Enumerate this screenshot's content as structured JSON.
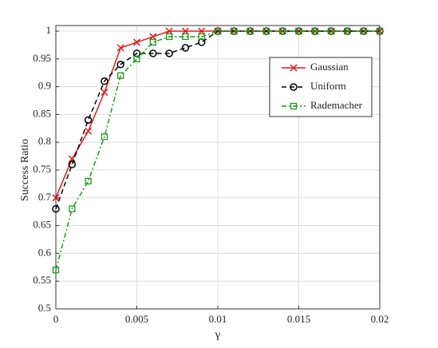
{
  "chart_data": {
    "type": "line",
    "x_label": "γ",
    "y_label": "Success Ratio",
    "x": [
      0,
      0.001,
      0.002,
      0.003,
      0.004,
      0.005,
      0.006,
      0.007,
      0.008,
      0.009,
      0.01,
      0.011,
      0.012,
      0.013,
      0.014,
      0.015,
      0.016,
      0.017,
      0.018,
      0.019,
      0.02
    ],
    "series": [
      {
        "name": "Gaussian",
        "color": "#e41a1c",
        "marker": "x",
        "dash": "solid",
        "values": [
          0.7,
          0.77,
          0.82,
          0.89,
          0.97,
          0.98,
          0.99,
          1,
          1,
          1,
          1,
          1,
          1,
          1,
          1,
          1,
          1,
          1,
          1,
          1,
          1
        ]
      },
      {
        "name": "Uniform",
        "color": "#000000",
        "marker": "circle",
        "dash": "dashed",
        "values": [
          0.68,
          0.76,
          0.84,
          0.91,
          0.94,
          0.96,
          0.96,
          0.96,
          0.97,
          0.98,
          1,
          1,
          1,
          1,
          1,
          1,
          1,
          1,
          1,
          1,
          1
        ]
      },
      {
        "name": "Rademacher",
        "color": "#1a9a1a",
        "marker": "square",
        "dash": "dashdot",
        "values": [
          0.57,
          0.68,
          0.73,
          0.81,
          0.92,
          0.95,
          0.98,
          0.99,
          0.99,
          0.99,
          1,
          1,
          1,
          1,
          1,
          1,
          1,
          1,
          1,
          1,
          1
        ]
      }
    ],
    "xlim": [
      0,
      0.02
    ],
    "xticks": [
      0,
      0.005,
      0.01,
      0.015,
      0.02
    ],
    "ylim": [
      0.5,
      1
    ],
    "yticks": [
      0.5,
      0.55,
      0.6,
      0.65,
      0.7,
      0.75,
      0.8,
      0.85,
      0.9,
      0.95,
      1
    ],
    "grid": true,
    "legend_loc": "upper right"
  }
}
